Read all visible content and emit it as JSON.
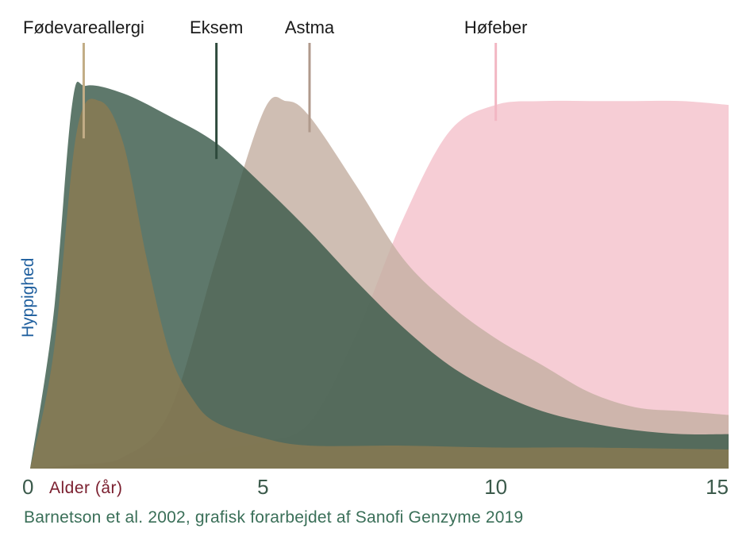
{
  "chart_data": {
    "type": "area",
    "title": "",
    "xlabel": "Alder (år)",
    "ylabel": "Hyppighed",
    "xlim": [
      0,
      15
    ],
    "x_ticks": [
      "0",
      "5",
      "10",
      "15"
    ],
    "y_ticks": [],
    "grid": false,
    "legend": "labels above peaks",
    "series": [
      {
        "name": "Høfeber",
        "color": "#f6cdd5",
        "label_x": 10.0,
        "points": [
          [
            0,
            0.0
          ],
          [
            1,
            0.01
          ],
          [
            2,
            0.02
          ],
          [
            3,
            0.03
          ],
          [
            4,
            0.05
          ],
          [
            5,
            0.07
          ],
          [
            6,
            0.12
          ],
          [
            7,
            0.35
          ],
          [
            8,
            0.65
          ],
          [
            9,
            0.88
          ],
          [
            10,
            0.95
          ],
          [
            11,
            0.96
          ],
          [
            12,
            0.96
          ],
          [
            13,
            0.96
          ],
          [
            14,
            0.96
          ],
          [
            15,
            0.95
          ]
        ]
      },
      {
        "name": "Astma",
        "color": "#c4b0a2",
        "label_x": 6.0,
        "points": [
          [
            0,
            0.0
          ],
          [
            1,
            0.01
          ],
          [
            2,
            0.03
          ],
          [
            3,
            0.15
          ],
          [
            4,
            0.55
          ],
          [
            5,
            0.93
          ],
          [
            5.5,
            0.96
          ],
          [
            6,
            0.92
          ],
          [
            7,
            0.74
          ],
          [
            8,
            0.55
          ],
          [
            9,
            0.43
          ],
          [
            10,
            0.34
          ],
          [
            11,
            0.27
          ],
          [
            12,
            0.2
          ],
          [
            13,
            0.16
          ],
          [
            14,
            0.15
          ],
          [
            15,
            0.14
          ]
        ]
      },
      {
        "name": "Eksem",
        "color": "#3b5a4b",
        "label_x": 4.0,
        "points": [
          [
            0,
            0.0
          ],
          [
            0.5,
            0.4
          ],
          [
            0.9,
            0.95
          ],
          [
            1.2,
            1.0
          ],
          [
            2,
            0.98
          ],
          [
            3,
            0.92
          ],
          [
            4,
            0.85
          ],
          [
            5,
            0.74
          ],
          [
            6,
            0.62
          ],
          [
            7,
            0.49
          ],
          [
            8,
            0.37
          ],
          [
            9,
            0.27
          ],
          [
            10,
            0.2
          ],
          [
            11,
            0.15
          ],
          [
            12,
            0.12
          ],
          [
            13,
            0.1
          ],
          [
            14,
            0.09
          ],
          [
            15,
            0.09
          ]
        ]
      },
      {
        "name": "Fødevareallergi",
        "color": "#8a7a52",
        "label_x": 1.15,
        "points": [
          [
            0,
            0.0
          ],
          [
            0.5,
            0.3
          ],
          [
            1,
            0.88
          ],
          [
            1.5,
            0.96
          ],
          [
            2,
            0.85
          ],
          [
            2.5,
            0.55
          ],
          [
            3,
            0.3
          ],
          [
            3.5,
            0.18
          ],
          [
            4,
            0.12
          ],
          [
            5,
            0.08
          ],
          [
            6,
            0.06
          ],
          [
            8,
            0.06
          ],
          [
            10,
            0.055
          ],
          [
            12,
            0.055
          ],
          [
            15,
            0.05
          ]
        ]
      }
    ],
    "source": "Barnetson et al. 2002, grafisk forarbejdet af Sanofi Genzyme 2019",
    "text_colors": {
      "ticks": "#3b5a4b",
      "xlabel": "#7a1e2e",
      "ylabel": "#1f5f9e",
      "source": "#3a6f58"
    }
  }
}
